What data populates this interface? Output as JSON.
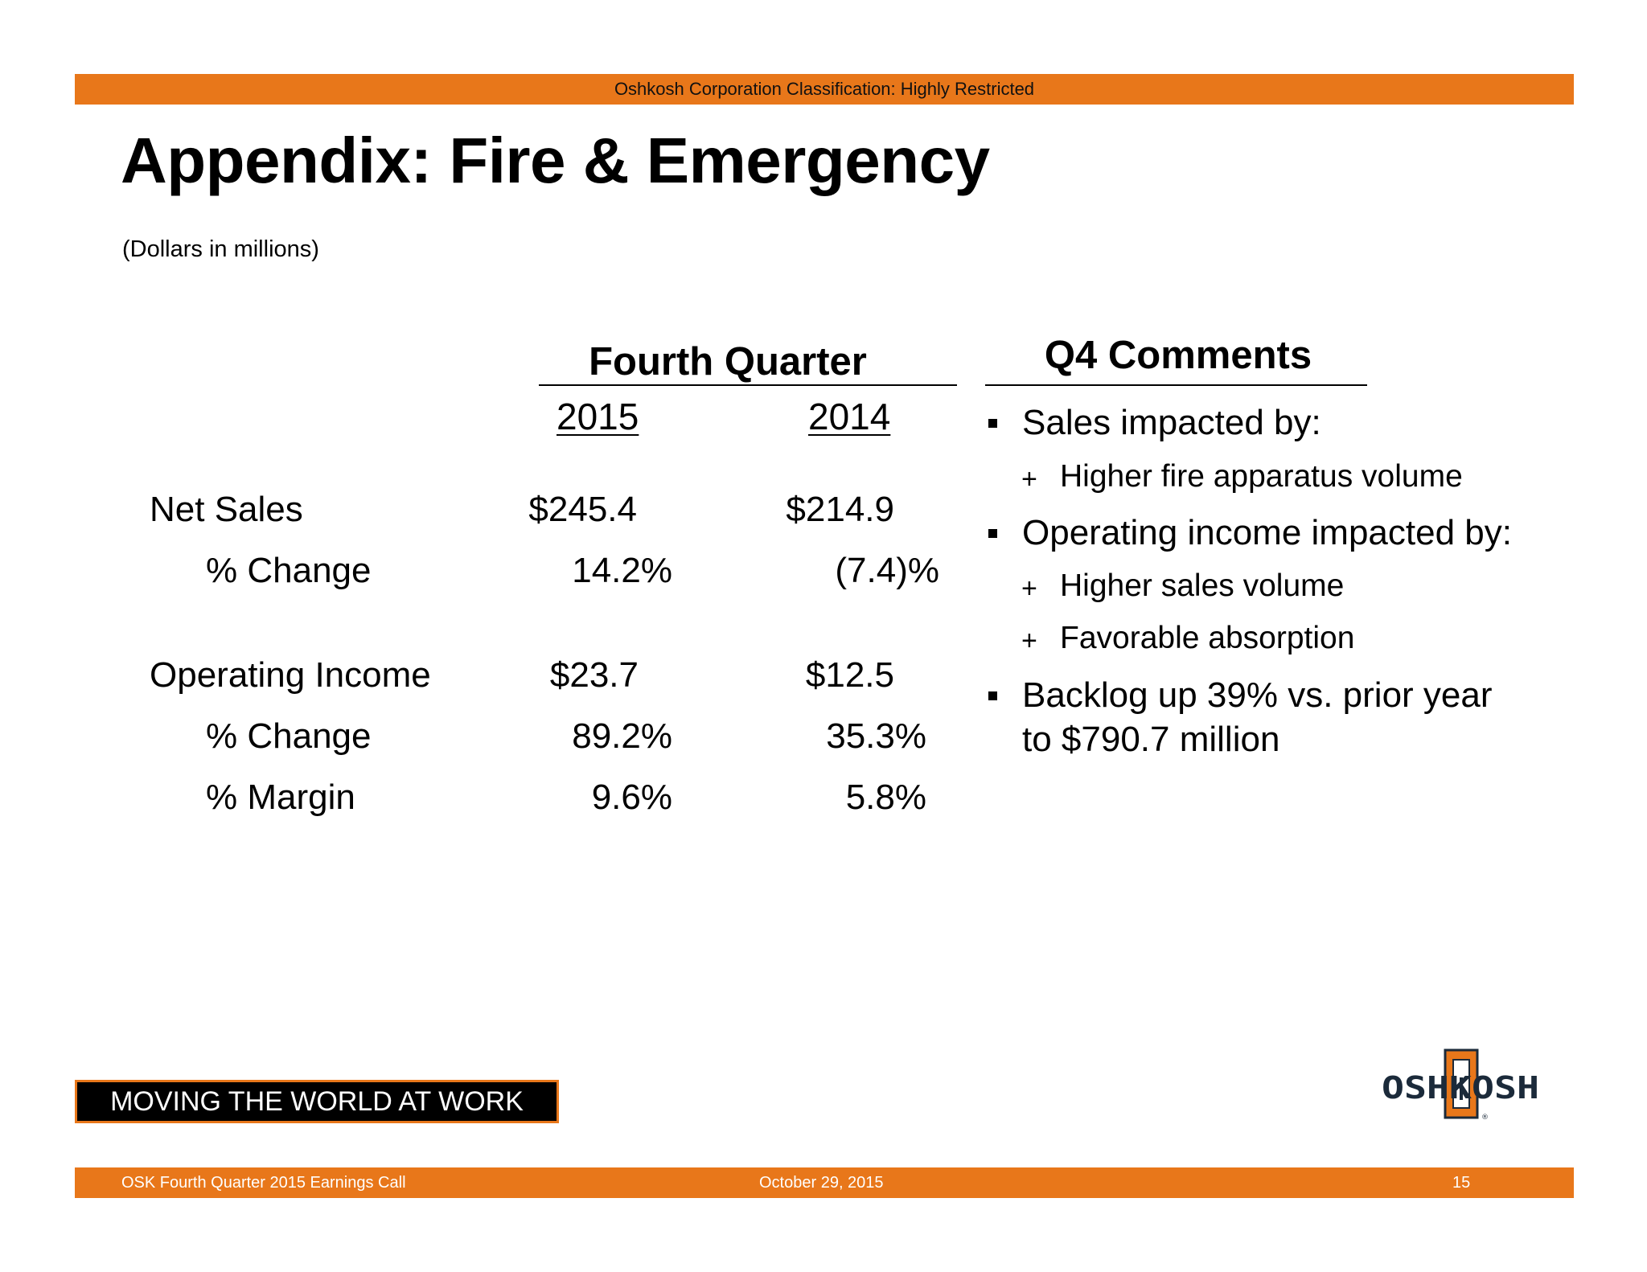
{
  "header": {
    "classification": "Oshkosh Corporation Classification: Highly Restricted",
    "title": "Appendix: Fire & Emergency",
    "subtitle": "(Dollars in millions)"
  },
  "table": {
    "group_header": "Fourth Quarter",
    "columns": [
      "2015",
      "2014"
    ],
    "rows": [
      {
        "label": "Net Sales",
        "values": [
          "$245.4",
          "$214.9"
        ]
      },
      {
        "label": "% Change",
        "values": [
          "14.2%",
          "(7.4)%"
        ]
      },
      {
        "label": "Operating Income",
        "values": [
          "$23.7",
          "$12.5"
        ]
      },
      {
        "label": "% Change",
        "values": [
          "89.2%",
          "35.3%"
        ]
      },
      {
        "label": "% Margin",
        "values": [
          "9.6%",
          "5.8%"
        ]
      }
    ]
  },
  "comments": {
    "header": "Q4 Comments",
    "bullets": [
      {
        "text": "Sales impacted by:",
        "subs": [
          {
            "marker": "+",
            "text": "Higher fire apparatus volume"
          }
        ]
      },
      {
        "text": "Operating income impacted by:",
        "subs": [
          {
            "marker": "+",
            "text": "Higher sales volume"
          },
          {
            "marker": "+",
            "text": "Favorable absorption"
          }
        ]
      },
      {
        "text_lines": [
          "Backlog up 39% vs. prior year",
          "to $790.7 million"
        ]
      }
    ]
  },
  "tagline": "MOVING THE WORLD AT WORK",
  "logo": {
    "text": "OSHKOSH",
    "icon": "oshkosh-logo"
  },
  "footer": {
    "left": "OSK Fourth Quarter 2015 Earnings Call",
    "center": "October 29, 2015",
    "page": "15"
  },
  "colors": {
    "brand_orange": "#e8771a",
    "logo_navy": "#1b2a3a"
  }
}
